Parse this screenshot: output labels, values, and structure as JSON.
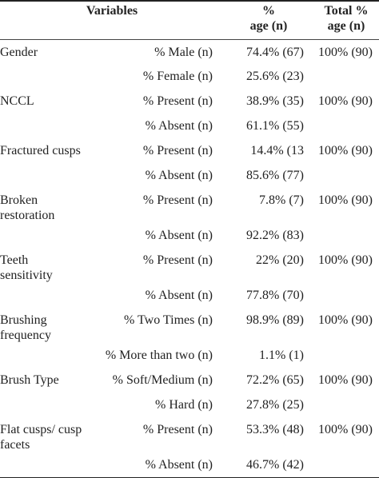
{
  "header": {
    "variables": "Variables",
    "age_line1": "%",
    "age_line2": "age (n)",
    "total_line1": "Total %",
    "total_line2": "age (n)"
  },
  "rows": [
    {
      "category": "Gender",
      "sub": "% Male (n)",
      "value": "74.4% (67)",
      "total": "100% (90)"
    },
    {
      "category": "",
      "sub": "% Female (n)",
      "value": "25.6% (23)",
      "total": ""
    },
    {
      "category": "NCCL",
      "sub": "% Present (n)",
      "value": "38.9% (35)",
      "total": "100% (90)"
    },
    {
      "category": "",
      "sub": "% Absent (n)",
      "value": "61.1% (55)",
      "total": ""
    },
    {
      "category": "Fractured cusps",
      "sub": "% Present (n)",
      "value": "14.4% (13",
      "total": "100% (90)"
    },
    {
      "category": "",
      "sub": "% Absent (n)",
      "value": "85.6% (77)",
      "total": ""
    },
    {
      "category": "Broken restoration",
      "sub": "% Present (n)",
      "value": "7.8% (7)",
      "total": "100% (90)"
    },
    {
      "category": "",
      "sub": "% Absent (n)",
      "value": "92.2% (83)",
      "total": ""
    },
    {
      "category": "Teeth sensitivity",
      "sub": "% Present (n)",
      "value": "22% (20)",
      "total": "100% (90)"
    },
    {
      "category": "",
      "sub": "% Absent (n)",
      "value": "77.8% (70)",
      "total": ""
    },
    {
      "category": "Brushing frequency",
      "sub": "% Two Times (n)",
      "value": "98.9% (89)",
      "total": "100% (90)"
    },
    {
      "category": "",
      "sub": "% More than two (n)",
      "value": "1.1% (1)",
      "total": ""
    },
    {
      "category": "Brush Type",
      "sub": "% Soft/Medium (n)",
      "value": "72.2% (65)",
      "total": "100% (90)"
    },
    {
      "category": "",
      "sub": "% Hard (n)",
      "value": "27.8% (25)",
      "total": ""
    },
    {
      "category": "Flat cusps/ cusp facets",
      "sub": "% Present (n)",
      "value": "53.3% (48)",
      "total": "100% (90)"
    },
    {
      "category": "",
      "sub": "% Absent (n)",
      "value": "46.7% (42)",
      "total": ""
    }
  ]
}
